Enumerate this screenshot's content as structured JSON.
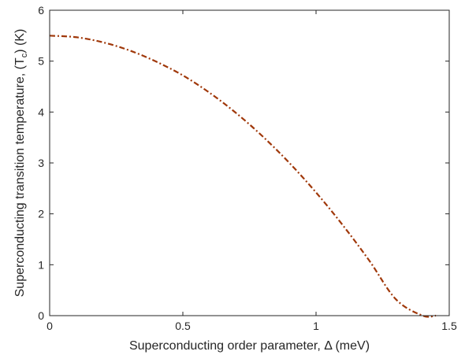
{
  "chart_data": {
    "type": "line",
    "title": "",
    "xlabel": "Superconducting order parameter, Δ (meV)",
    "ylabel": {
      "prefix": "Superconducting transition temperature, (T",
      "subscript": "c",
      "suffix": ") (K)"
    },
    "xlim": [
      0,
      1.5
    ],
    "ylim": [
      0,
      6
    ],
    "x_ticks": [
      0,
      0.5,
      1,
      1.5
    ],
    "x_tick_labels": [
      "0",
      "0.5",
      "1",
      "1.5"
    ],
    "y_ticks": [
      0,
      1,
      2,
      3,
      4,
      5,
      6
    ],
    "y_tick_labels": [
      "0",
      "1",
      "2",
      "3",
      "4",
      "5",
      "6"
    ],
    "grid": false,
    "series": [
      {
        "line_style": "dash-dot",
        "color": "#a0380a",
        "x": [
          0,
          0.1,
          0.2,
          0.3,
          0.4,
          0.5,
          0.6,
          0.7,
          0.8,
          0.9,
          1.0,
          1.1,
          1.2,
          1.3,
          1.4,
          1.45
        ],
        "y": [
          5.5,
          5.47,
          5.37,
          5.21,
          4.99,
          4.72,
          4.38,
          3.98,
          3.52,
          3.0,
          2.42,
          1.78,
          1.08,
          0.32,
          -0.5,
          -0.06
        ]
      }
    ]
  }
}
